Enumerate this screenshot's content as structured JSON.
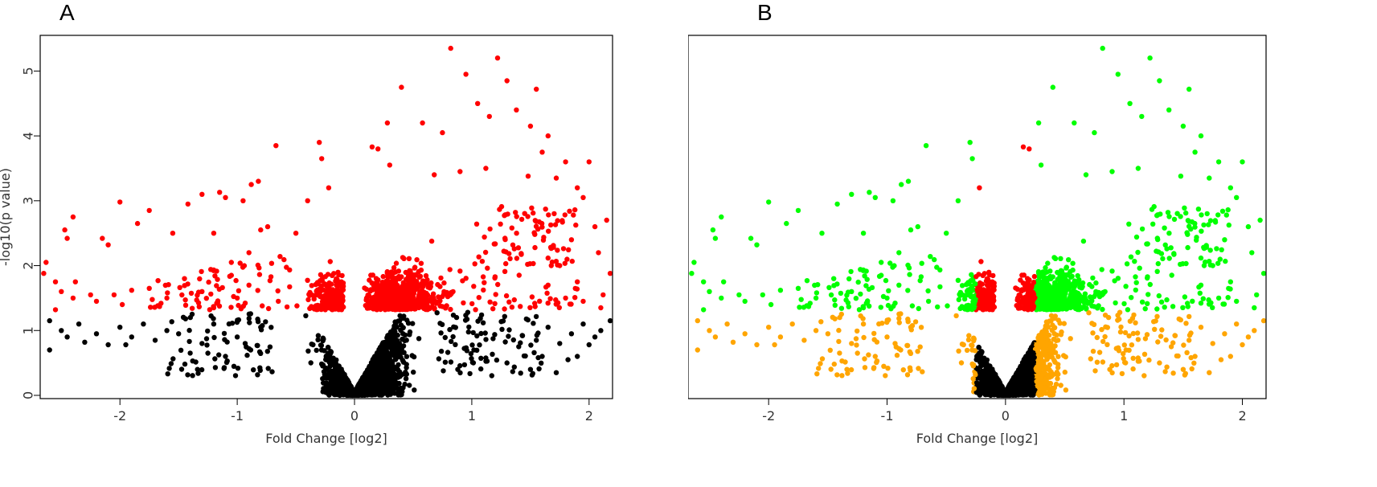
{
  "panels": [
    {
      "letter": "A",
      "xlabel": "Fold Change [log2]",
      "ylabel": "-log10(p value)"
    },
    {
      "letter": "B",
      "xlabel": "Fold Change [log2]",
      "ylabel": "-log10(p value)"
    }
  ],
  "chart_data": [
    {
      "type": "scatter",
      "title": "A",
      "xlabel": "Fold Change [log2]",
      "ylabel": "-log10(p value)",
      "xlim": [
        -2.68,
        2.2
      ],
      "ylim": [
        -0.05,
        5.55
      ],
      "xticks": [
        "-2",
        "-1",
        "0",
        "1",
        "2"
      ],
      "yticks": [
        "0",
        "1",
        "2",
        "3",
        "4",
        "5"
      ],
      "grid": false,
      "legend": "none",
      "p_threshold_neglog10": 1.3,
      "colors": {
        "significant": "#ff0000",
        "not_significant": "#000000"
      },
      "series": [
        {
          "color": "#ff0000",
          "description_rule": "-log10(p) >= 1.3",
          "points": [
            [
              0.82,
              5.35
            ],
            [
              1.22,
              5.2
            ],
            [
              0.95,
              4.95
            ],
            [
              1.3,
              4.85
            ],
            [
              0.4,
              4.75
            ],
            [
              1.55,
              4.72
            ],
            [
              1.05,
              4.5
            ],
            [
              1.38,
              4.4
            ],
            [
              1.15,
              4.3
            ],
            [
              0.28,
              4.2
            ],
            [
              0.58,
              4.2
            ],
            [
              1.5,
              4.15
            ],
            [
              0.75,
              4.05
            ],
            [
              1.65,
              4.0
            ],
            [
              -0.3,
              3.9
            ],
            [
              -0.67,
              3.85
            ],
            [
              0.15,
              3.83
            ],
            [
              0.2,
              3.8
            ],
            [
              1.6,
              3.75
            ],
            [
              1.8,
              3.6
            ],
            [
              2.0,
              3.6
            ],
            [
              -0.28,
              3.65
            ],
            [
              0.3,
              3.55
            ],
            [
              1.12,
              3.5
            ],
            [
              0.9,
              3.45
            ],
            [
              0.68,
              3.4
            ],
            [
              1.48,
              3.38
            ],
            [
              1.72,
              3.35
            ],
            [
              -0.82,
              3.3
            ],
            [
              -0.22,
              3.2
            ],
            [
              -0.88,
              3.25
            ],
            [
              -1.3,
              3.1
            ],
            [
              -1.15,
              3.13
            ],
            [
              -1.1,
              3.05
            ],
            [
              -2.0,
              2.98
            ],
            [
              -1.42,
              2.95
            ],
            [
              -0.95,
              3.0
            ],
            [
              -0.4,
              3.0
            ],
            [
              1.9,
              3.2
            ],
            [
              1.95,
              3.05
            ],
            [
              -1.75,
              2.85
            ],
            [
              -2.4,
              2.75
            ],
            [
              -1.85,
              2.65
            ],
            [
              -2.15,
              2.42
            ],
            [
              -2.1,
              2.32
            ],
            [
              -2.47,
              2.55
            ],
            [
              -2.45,
              2.42
            ],
            [
              -1.55,
              2.5
            ],
            [
              -1.2,
              2.5
            ],
            [
              -0.74,
              2.6
            ],
            [
              -0.8,
              2.55
            ],
            [
              -0.5,
              2.5
            ],
            [
              2.15,
              2.7
            ],
            [
              2.05,
              2.6
            ],
            [
              1.85,
              2.4
            ],
            [
              2.08,
              2.2
            ],
            [
              -2.63,
              2.05
            ],
            [
              -2.55,
              1.75
            ],
            [
              -2.5,
              1.6
            ],
            [
              -2.38,
              1.75
            ],
            [
              -2.25,
              1.55
            ],
            [
              -2.05,
              1.55
            ],
            [
              -1.9,
              1.62
            ],
            [
              -1.75,
              1.65
            ],
            [
              -1.6,
              1.5
            ],
            [
              -1.45,
              1.8
            ],
            [
              -1.3,
              1.6
            ],
            [
              -1.65,
              1.42
            ],
            [
              -1.98,
              1.4
            ],
            [
              -2.2,
              1.45
            ],
            [
              -2.4,
              1.5
            ],
            [
              -2.55,
              1.32
            ],
            [
              -2.65,
              1.88
            ],
            [
              2.18,
              1.88
            ],
            [
              2.12,
              1.55
            ],
            [
              1.95,
              1.45
            ],
            [
              2.1,
              1.35
            ],
            [
              -1.05,
              2.05
            ],
            [
              -1.0,
              1.5
            ],
            [
              -0.9,
              1.7
            ],
            [
              -1.2,
              1.35
            ],
            [
              1.75,
              2.0
            ],
            [
              1.65,
              1.7
            ],
            [
              1.8,
              1.5
            ],
            [
              1.9,
              1.75
            ],
            [
              -0.9,
              2.2
            ],
            [
              -1.05,
              1.85
            ],
            [
              -0.65,
              1.45
            ]
          ]
        },
        {
          "color": "#000000",
          "description_rule": "-log10(p) < 1.3",
          "points": [
            [
              -2.6,
              1.15
            ],
            [
              -2.5,
              1.0
            ],
            [
              -2.45,
              0.9
            ],
            [
              -2.35,
              1.1
            ],
            [
              -2.2,
              0.95
            ],
            [
              -2.1,
              0.78
            ],
            [
              -2.0,
              1.05
            ],
            [
              -1.9,
              0.9
            ],
            [
              -1.8,
              1.1
            ],
            [
              -1.7,
              0.85
            ],
            [
              -1.6,
              1.0
            ],
            [
              -1.5,
              0.95
            ],
            [
              -1.4,
              1.2
            ],
            [
              -1.3,
              0.8
            ],
            [
              -1.2,
              1.1
            ],
            [
              -1.1,
              0.6
            ],
            [
              -1.0,
              0.9
            ],
            [
              -0.9,
              0.72
            ],
            [
              -0.8,
              1.05
            ],
            [
              -2.6,
              0.7
            ],
            [
              -2.3,
              0.82
            ],
            [
              -1.95,
              0.78
            ],
            [
              -1.25,
              0.65
            ],
            [
              2.18,
              1.15
            ],
            [
              2.1,
              1.0
            ],
            [
              2.05,
              0.9
            ],
            [
              1.95,
              1.1
            ],
            [
              1.85,
              0.95
            ],
            [
              1.75,
              0.8
            ],
            [
              1.65,
              1.05
            ],
            [
              1.6,
              0.6
            ],
            [
              1.55,
              0.85
            ],
            [
              1.5,
              0.4
            ],
            [
              1.4,
              0.75
            ],
            [
              1.3,
              0.5
            ],
            [
              2.0,
              0.78
            ],
            [
              1.9,
              0.6
            ],
            [
              1.72,
              0.35
            ],
            [
              1.82,
              0.55
            ]
          ]
        }
      ],
      "dense_regions": [
        {
          "color": "#ff0000",
          "x": [
            -0.55,
            -0.08
          ],
          "y": [
            1.3,
            2.3
          ]
        },
        {
          "color": "#ff0000",
          "x": [
            0.08,
            1.2
          ],
          "y": [
            1.3,
            2.4
          ]
        },
        {
          "color": "#ff0000",
          "x": [
            0.4,
            1.1
          ],
          "y": [
            2.3,
            3.0
          ]
        },
        {
          "color": "#000000",
          "x": [
            -0.5,
            0.7
          ],
          "y": [
            0.0,
            1.28
          ],
          "shape": "volcano"
        }
      ]
    },
    {
      "type": "scatter",
      "title": "B",
      "xlabel": "Fold Change [log2]",
      "ylabel": "-log10(p value)",
      "xlim": [
        -2.68,
        2.2
      ],
      "ylim": [
        -0.05,
        5.55
      ],
      "xticks": [
        "-2",
        "-1",
        "0",
        "1",
        "2"
      ],
      "yticks": [
        "0",
        "1",
        "2",
        "3",
        "4",
        "5"
      ],
      "grid": false,
      "legend": "none",
      "p_threshold_neglog10": 1.3,
      "fold_change_threshold_log2": 0.25,
      "colors": {
        "significant_large_fc": "#00ff00",
        "significant_small_fc": "#ff0000",
        "not_significant_large_fc": "#ffa500",
        "not_significant_small_fc": "#000000"
      }
    }
  ]
}
